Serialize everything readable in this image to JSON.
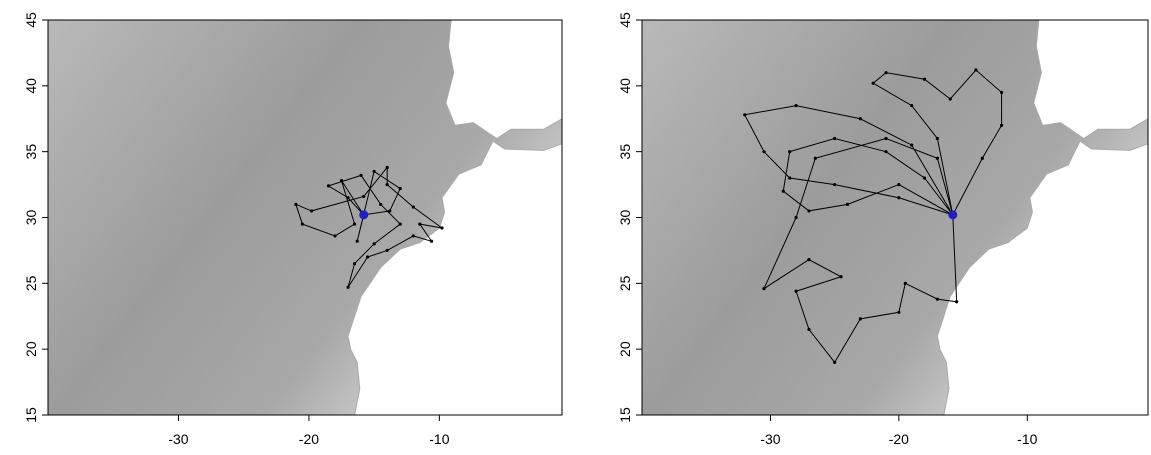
{
  "chart_data": [
    {
      "type": "track",
      "xlim": [
        -40,
        -0.6
      ],
      "ylim": [
        15,
        45
      ],
      "xticks": [
        -30,
        -20,
        -10
      ],
      "yticks": [
        15,
        20,
        25,
        30,
        35,
        40,
        45
      ],
      "color": "#000000",
      "marker_color": "#2020c0",
      "marker_x": -15.8,
      "marker_y": 30.2,
      "x": [
        -15.8,
        -17,
        -18.5,
        -16,
        -14.5,
        -13,
        -15,
        -16.5,
        -17,
        -15.5,
        -14,
        -12,
        -10.6,
        -11.5,
        -9.8,
        -12,
        -14,
        -14,
        -15.8,
        -19.8,
        -21,
        -20.5,
        -18,
        -16.5,
        -17.5,
        -15.8,
        -13.8,
        -13,
        -15,
        -16.3,
        -15.8
      ],
      "values": [
        30.2,
        31.5,
        32.4,
        33.2,
        31,
        29.5,
        28,
        26.5,
        24.7,
        27,
        27.5,
        28.6,
        28.2,
        29.5,
        29.2,
        30.8,
        32.5,
        33.8,
        31.6,
        30.5,
        31,
        29.5,
        28.6,
        29.5,
        32.8,
        30.2,
        30.5,
        32.2,
        33.5,
        28.2,
        30.2
      ]
    },
    {
      "type": "track",
      "xlim": [
        -40,
        -0.6
      ],
      "ylim": [
        15,
        45
      ],
      "xticks": [
        -30,
        -20,
        -10
      ],
      "yticks": [
        15,
        20,
        25,
        30,
        35,
        40,
        45
      ],
      "color": "#000000",
      "marker_color": "#2020c0",
      "marker_x": -15.8,
      "marker_y": 30.2,
      "x": [
        -15.8,
        -20,
        -25,
        -28.5,
        -30.5,
        -32,
        -28,
        -23,
        -19,
        -15.8,
        -18,
        -21,
        -25,
        -28.5,
        -29,
        -27,
        -24,
        -20,
        -15.8,
        -17,
        -19,
        -22,
        -21,
        -18,
        -16,
        -14,
        -12,
        -12,
        -13.5,
        -15.8,
        -17,
        -21,
        -26.5,
        -28,
        -30.5,
        -27,
        -24.5,
        -28,
        -27,
        -25,
        -23,
        -20,
        -19.5,
        -17,
        -15.5,
        -15.8
      ],
      "values": [
        30.2,
        31.5,
        32.5,
        33,
        35,
        37.8,
        38.5,
        37.5,
        35.5,
        30.2,
        33,
        35,
        36,
        35,
        32,
        30.5,
        31,
        32.5,
        30.2,
        36,
        38.5,
        40.2,
        41,
        40.5,
        39,
        41.2,
        39.5,
        37,
        34.5,
        30.2,
        34.5,
        36,
        34.5,
        30,
        24.6,
        26.8,
        25.5,
        24.4,
        21.5,
        19,
        22.3,
        22.8,
        25,
        23.8,
        23.6,
        30.2
      ]
    }
  ]
}
